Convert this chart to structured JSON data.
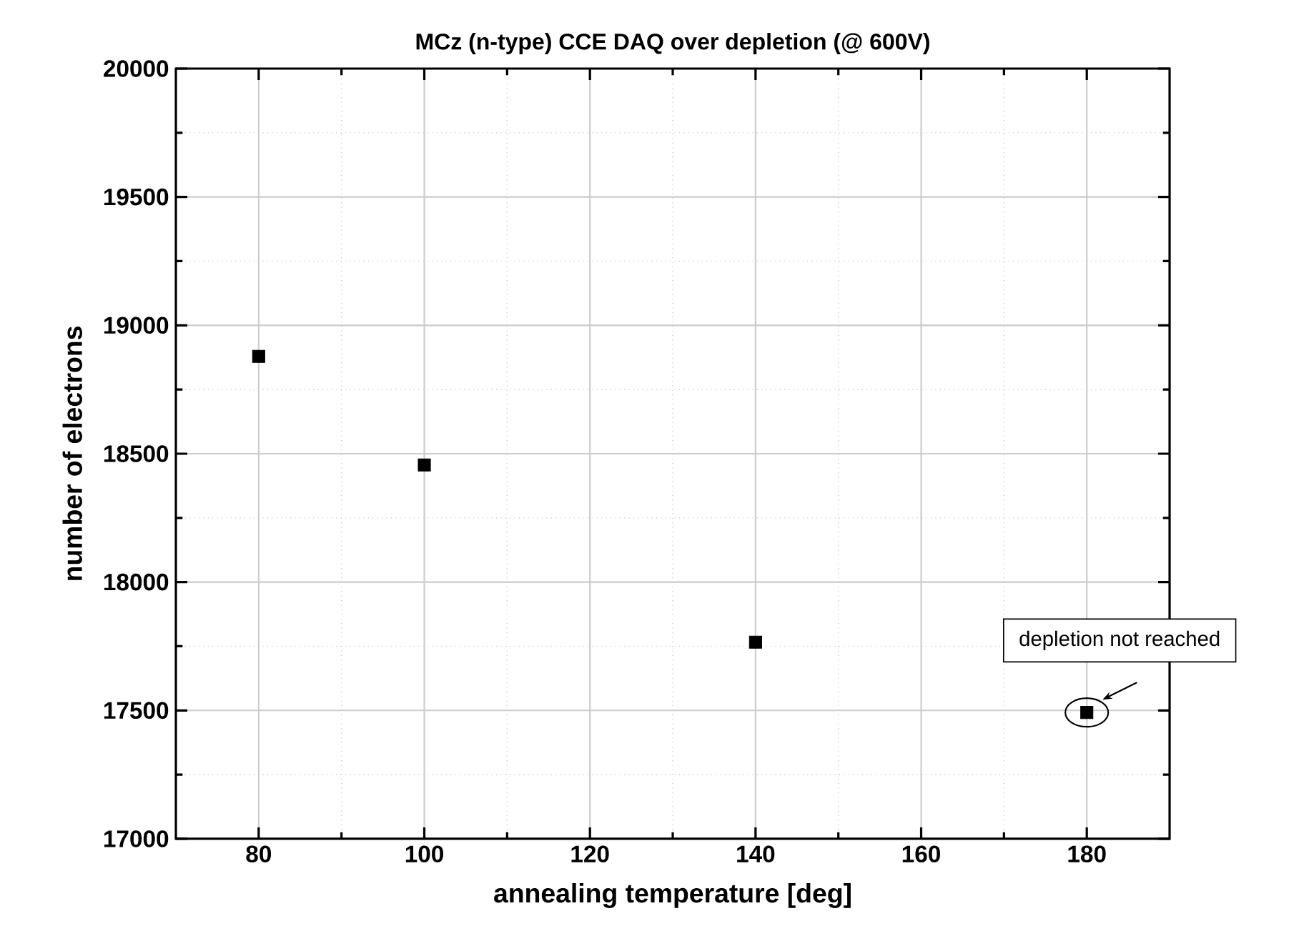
{
  "chart_data": {
    "type": "scatter",
    "title": "MCz (n-type) CCE DAQ over depletion (@ 600V)",
    "xlabel": "annealing temperature [deg]",
    "ylabel": "number of electrons",
    "x": [
      80,
      100,
      140,
      180
    ],
    "values": [
      18879,
      18456,
      17766,
      17492
    ],
    "color": "#000000",
    "marker": "square",
    "xlim": [
      70,
      190
    ],
    "ylim": [
      17000,
      20000
    ],
    "xticks": [
      80,
      100,
      120,
      140,
      160,
      180
    ],
    "yticks": [
      17000,
      17500,
      18000,
      18500,
      19000,
      19500,
      20000
    ],
    "grid": true,
    "annotations": [
      {
        "text": "depletion not reached",
        "x": 180,
        "y": 17492
      }
    ]
  }
}
